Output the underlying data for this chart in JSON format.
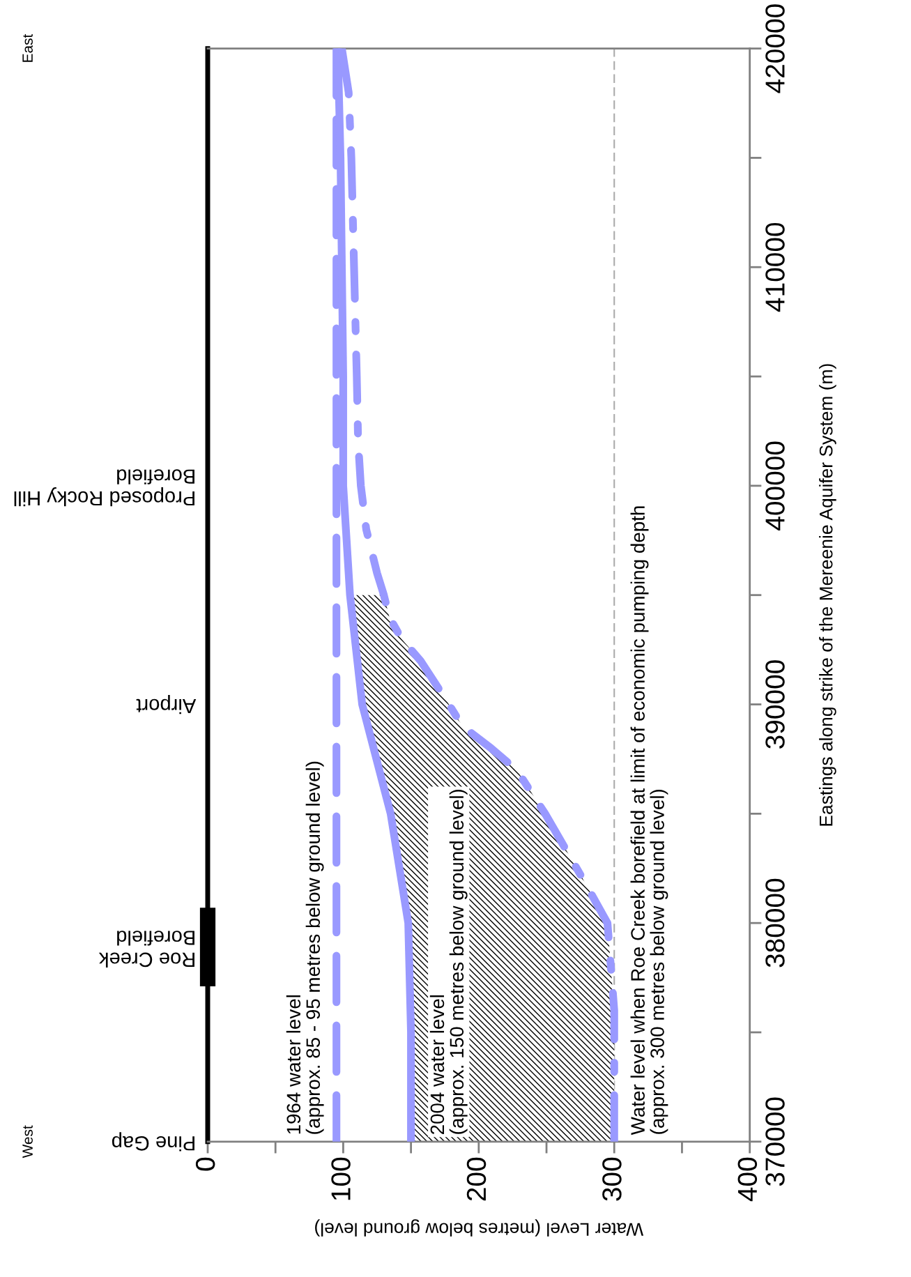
{
  "chart_data": {
    "type": "line",
    "orientation": "horizontal",
    "xlabel": "Water Level (metres below ground level)",
    "ylabel": "Eastings along strike of the Mereenie Aquifer System (m)",
    "xlim": [
      0,
      400
    ],
    "ylim": [
      370000,
      420000
    ],
    "xticks": [
      0,
      100,
      200,
      300,
      400
    ],
    "yticks": [
      370000,
      380000,
      390000,
      400000,
      410000,
      420000
    ],
    "grid": false,
    "legend": false,
    "series": [
      {
        "color": "#9999ff",
        "line_style": "dashed",
        "x": [
          370000,
          420000
        ],
        "values": [
          95,
          95
        ]
      },
      {
        "color": "#9999ff",
        "line_style": "solid",
        "x": [
          370000,
          375000,
          380000,
          385000,
          390000,
          395000,
          400000,
          405000,
          410000,
          415000,
          420000
        ],
        "values": [
          150,
          150,
          148,
          135,
          114,
          105,
          100,
          100,
          99,
          98,
          96
        ]
      },
      {
        "color": "#9999ff",
        "line_style": "dashdot",
        "x": [
          370000,
          376000,
          380000,
          382000,
          385000,
          387000,
          388000,
          389000,
          390000,
          392000,
          393000,
          394000,
          395000,
          396000,
          398000,
          400000,
          402000,
          405000,
          410000,
          415000,
          418000,
          420000
        ],
        "values": [
          300,
          300,
          295,
          277,
          249,
          228,
          209,
          188,
          178,
          157,
          143,
          134,
          130,
          125,
          117,
          113,
          111,
          110,
          108,
          106,
          104,
          99
        ],
        "lower": [
          150,
          150,
          148,
          143,
          135,
          127,
          122,
          118,
          114,
          110,
          108,
          106,
          105,
          null,
          null,
          null,
          null,
          null,
          null,
          null,
          null,
          null
        ],
        "upper": [
          300,
          300,
          295,
          277,
          249,
          228,
          209,
          188,
          178,
          157,
          143,
          134,
          130,
          null,
          null,
          null,
          null,
          null,
          null,
          null,
          null,
          null
        ]
      }
    ],
    "ref_lines": [
      {
        "axis": "x",
        "value": 300,
        "label": null,
        "color": "#aaaaaa",
        "line_style": "dashed"
      }
    ],
    "annotations": [
      "West",
      "East",
      "Pine Gap",
      "Roe Creek\nBorefield",
      "Airport",
      "Proposed Rocky Hill\nBorefield",
      "1964 water level\n(approx. 85 - 95 metres below ground level)",
      "2004 water level\n(approx. 150 metres below ground level)",
      "Water level when Roe Creek borefield at limit of economic pumping depth\n(approx. 300 metres below ground level)"
    ]
  }
}
